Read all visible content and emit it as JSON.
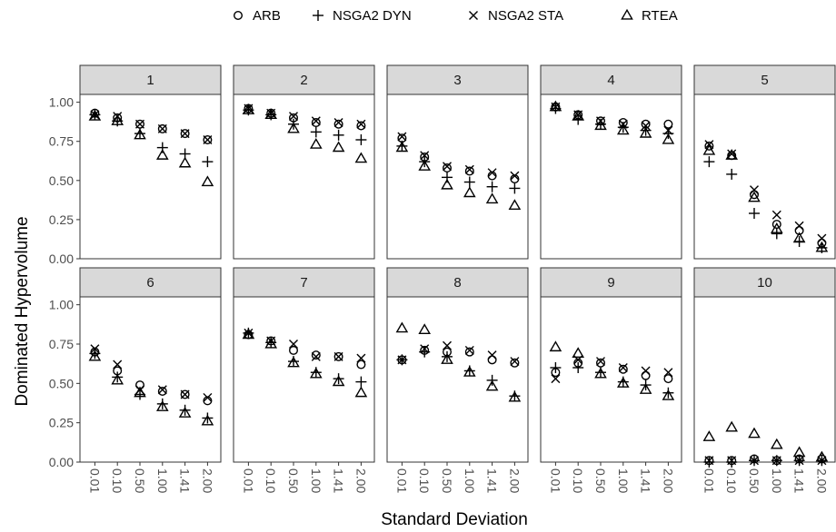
{
  "chart_data": {
    "type": "scatter",
    "title": "",
    "xlabel": "Standard Deviation",
    "ylabel": "Dominated Hypervolume",
    "categories": [
      "0.01",
      "0.10",
      "0.50",
      "1.00",
      "1.41",
      "2.00"
    ],
    "ylim": [
      0,
      1.05
    ],
    "yticks": [
      0.0,
      0.25,
      0.5,
      0.75,
      1.0
    ],
    "ytick_labels": [
      "0.00",
      "0.25",
      "0.50",
      "0.75",
      "1.00"
    ],
    "grid": false,
    "legend": {
      "position": "top",
      "entries": [
        {
          "name": "ARB",
          "symbol": "○"
        },
        {
          "name": "NSGA2 DYN",
          "symbol": "+"
        },
        {
          "name": "NSGA2 STA",
          "symbol": "×"
        },
        {
          "name": "RTEA",
          "symbol": "△"
        }
      ]
    },
    "series_names": [
      "ARB",
      "NSGA2 DYN",
      "NSGA2 STA",
      "RTEA"
    ],
    "panels": [
      {
        "label": "1",
        "series": [
          {
            "name": "ARB",
            "values": [
              0.93,
              0.9,
              0.86,
              0.83,
              0.8,
              0.76
            ]
          },
          {
            "name": "NSGA2 DYN",
            "values": [
              0.92,
              0.88,
              0.8,
              0.71,
              0.67,
              0.62
            ]
          },
          {
            "name": "NSGA2 STA",
            "values": [
              0.92,
              0.91,
              0.86,
              0.83,
              0.8,
              0.76
            ]
          },
          {
            "name": "RTEA",
            "values": [
              0.91,
              0.88,
              0.79,
              0.66,
              0.61,
              0.49
            ]
          }
        ]
      },
      {
        "label": "2",
        "series": [
          {
            "name": "ARB",
            "values": [
              0.96,
              0.93,
              0.9,
              0.87,
              0.86,
              0.85
            ]
          },
          {
            "name": "NSGA2 DYN",
            "values": [
              0.95,
              0.92,
              0.86,
              0.81,
              0.79,
              0.76
            ]
          },
          {
            "name": "NSGA2 STA",
            "values": [
              0.96,
              0.93,
              0.91,
              0.88,
              0.87,
              0.86
            ]
          },
          {
            "name": "RTEA",
            "values": [
              0.95,
              0.92,
              0.83,
              0.73,
              0.71,
              0.64
            ]
          }
        ]
      },
      {
        "label": "3",
        "series": [
          {
            "name": "ARB",
            "values": [
              0.77,
              0.65,
              0.58,
              0.56,
              0.53,
              0.51
            ]
          },
          {
            "name": "NSGA2 DYN",
            "values": [
              0.72,
              0.62,
              0.52,
              0.49,
              0.46,
              0.45
            ]
          },
          {
            "name": "NSGA2 STA",
            "values": [
              0.78,
              0.66,
              0.59,
              0.57,
              0.55,
              0.53
            ]
          },
          {
            "name": "RTEA",
            "values": [
              0.71,
              0.59,
              0.47,
              0.42,
              0.38,
              0.34
            ]
          }
        ]
      },
      {
        "label": "4",
        "series": [
          {
            "name": "ARB",
            "values": [
              0.97,
              0.92,
              0.88,
              0.87,
              0.86,
              0.86
            ]
          },
          {
            "name": "NSGA2 DYN",
            "values": [
              0.96,
              0.89,
              0.86,
              0.84,
              0.82,
              0.8
            ]
          },
          {
            "name": "NSGA2 STA",
            "values": [
              0.97,
              0.92,
              0.88,
              0.86,
              0.85,
              0.82
            ]
          },
          {
            "name": "RTEA",
            "values": [
              0.97,
              0.91,
              0.85,
              0.82,
              0.8,
              0.76
            ]
          }
        ]
      },
      {
        "label": "5",
        "series": [
          {
            "name": "ARB",
            "values": [
              0.72,
              0.66,
              0.41,
              0.22,
              0.18,
              0.1
            ]
          },
          {
            "name": "NSGA2 DYN",
            "values": [
              0.62,
              0.54,
              0.29,
              0.16,
              0.11,
              0.07
            ]
          },
          {
            "name": "NSGA2 STA",
            "values": [
              0.73,
              0.67,
              0.44,
              0.28,
              0.21,
              0.13
            ]
          },
          {
            "name": "RTEA",
            "values": [
              0.69,
              0.66,
              0.39,
              0.19,
              0.13,
              0.07
            ]
          }
        ]
      },
      {
        "label": "6",
        "series": [
          {
            "name": "ARB",
            "values": [
              0.7,
              0.58,
              0.49,
              0.45,
              0.43,
              0.39
            ]
          },
          {
            "name": "NSGA2 DYN",
            "values": [
              0.69,
              0.54,
              0.43,
              0.37,
              0.33,
              0.28
            ]
          },
          {
            "name": "NSGA2 STA",
            "values": [
              0.72,
              0.62,
              0.46,
              0.46,
              0.43,
              0.41
            ]
          },
          {
            "name": "RTEA",
            "values": [
              0.67,
              0.52,
              0.44,
              0.35,
              0.31,
              0.26
            ]
          }
        ]
      },
      {
        "label": "7",
        "series": [
          {
            "name": "ARB",
            "values": [
              0.81,
              0.77,
              0.71,
              0.68,
              0.67,
              0.62
            ]
          },
          {
            "name": "NSGA2 DYN",
            "values": [
              0.82,
              0.76,
              0.64,
              0.57,
              0.53,
              0.51
            ]
          },
          {
            "name": "NSGA2 STA",
            "values": [
              0.82,
              0.77,
              0.75,
              0.67,
              0.67,
              0.66
            ]
          },
          {
            "name": "RTEA",
            "values": [
              0.81,
              0.75,
              0.63,
              0.56,
              0.51,
              0.44
            ]
          }
        ]
      },
      {
        "label": "8",
        "series": [
          {
            "name": "ARB",
            "values": [
              0.65,
              0.71,
              0.7,
              0.7,
              0.65,
              0.63
            ]
          },
          {
            "name": "NSGA2 DYN",
            "values": [
              0.65,
              0.7,
              0.67,
              0.58,
              0.52,
              0.42
            ]
          },
          {
            "name": "NSGA2 STA",
            "values": [
              0.65,
              0.72,
              0.74,
              0.71,
              0.68,
              0.64
            ]
          },
          {
            "name": "RTEA",
            "values": [
              0.85,
              0.84,
              0.65,
              0.57,
              0.48,
              0.41
            ]
          }
        ]
      },
      {
        "label": "9",
        "series": [
          {
            "name": "ARB",
            "values": [
              0.57,
              0.63,
              0.63,
              0.59,
              0.55,
              0.53
            ]
          },
          {
            "name": "NSGA2 DYN",
            "values": [
              0.6,
              0.6,
              0.57,
              0.51,
              0.49,
              0.44
            ]
          },
          {
            "name": "NSGA2 STA",
            "values": [
              0.53,
              0.65,
              0.64,
              0.6,
              0.58,
              0.57
            ]
          },
          {
            "name": "RTEA",
            "values": [
              0.73,
              0.69,
              0.56,
              0.5,
              0.46,
              0.42
            ]
          }
        ]
      },
      {
        "label": "10",
        "series": [
          {
            "name": "ARB",
            "values": [
              0.01,
              0.01,
              0.02,
              0.01,
              0.02,
              0.02
            ]
          },
          {
            "name": "NSGA2 DYN",
            "values": [
              0.0,
              0.0,
              0.01,
              0.01,
              0.01,
              0.01
            ]
          },
          {
            "name": "NSGA2 STA",
            "values": [
              0.01,
              0.01,
              0.01,
              0.01,
              0.01,
              0.01
            ]
          },
          {
            "name": "RTEA",
            "values": [
              0.16,
              0.22,
              0.18,
              0.11,
              0.06,
              0.03
            ]
          }
        ]
      }
    ]
  }
}
